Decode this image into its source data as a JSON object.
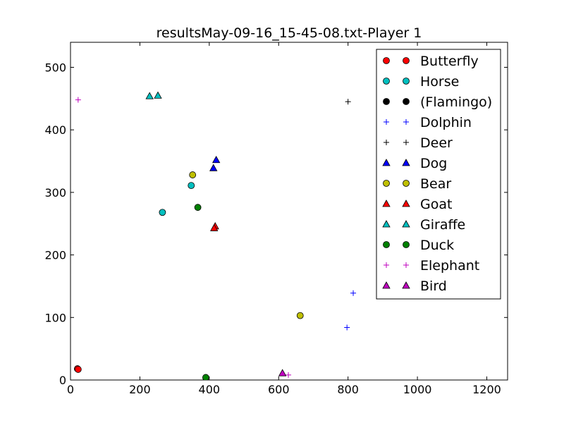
{
  "chart_data": {
    "type": "scatter",
    "title": "resultsMay-09-16_15-45-08.txt-Player 1",
    "xlabel": "",
    "ylabel": "",
    "xlim": [
      0,
      1260
    ],
    "ylim": [
      0,
      540
    ],
    "xticks": [
      0,
      200,
      400,
      600,
      800,
      1000,
      1200
    ],
    "yticks": [
      0,
      100,
      200,
      300,
      400,
      500
    ],
    "grid": false,
    "legend_position": "top-right",
    "series": [
      {
        "name": "Butterfly",
        "marker": "circle",
        "color": "#ff0000",
        "points": [
          [
            20,
            18
          ],
          [
            22,
            17
          ]
        ]
      },
      {
        "name": "Horse",
        "marker": "circle",
        "color": "#00bfbf",
        "points": [
          [
            265,
            268
          ],
          [
            348,
            311
          ]
        ]
      },
      {
        "name": "(Flamingo)",
        "marker": "circle",
        "color": "#000000",
        "points": []
      },
      {
        "name": "Dolphin",
        "marker": "plus",
        "color": "#0000ff",
        "points": [
          [
            815,
            139
          ],
          [
            797,
            84
          ]
        ]
      },
      {
        "name": "Deer",
        "marker": "plus",
        "color": "#000000",
        "points": [
          [
            800,
            445
          ],
          [
            395,
            0
          ]
        ]
      },
      {
        "name": "Dog",
        "marker": "triangle",
        "color": "#0000ff",
        "points": [
          [
            420,
            352
          ],
          [
            412,
            339
          ]
        ]
      },
      {
        "name": "Bear",
        "marker": "circle",
        "color": "#bfbf00",
        "points": [
          [
            352,
            328
          ],
          [
            662,
            103
          ]
        ]
      },
      {
        "name": "Goat",
        "marker": "triangle",
        "color": "#ff0000",
        "points": [
          [
            417,
            246
          ],
          [
            414,
            243
          ]
        ]
      },
      {
        "name": "Giraffe",
        "marker": "triangle",
        "color": "#00bfbf",
        "points": [
          [
            228,
            454
          ],
          [
            252,
            455
          ]
        ]
      },
      {
        "name": "Duck",
        "marker": "circle",
        "color": "#008000",
        "points": [
          [
            367,
            276
          ],
          [
            390,
            4
          ]
        ]
      },
      {
        "name": "Elephant",
        "marker": "plus",
        "color": "#bf00bf",
        "points": [
          [
            22,
            448
          ],
          [
            628,
            8
          ]
        ]
      },
      {
        "name": "Bird",
        "marker": "triangle",
        "color": "#bf00bf",
        "points": [
          [
            611,
            11
          ]
        ]
      }
    ]
  }
}
